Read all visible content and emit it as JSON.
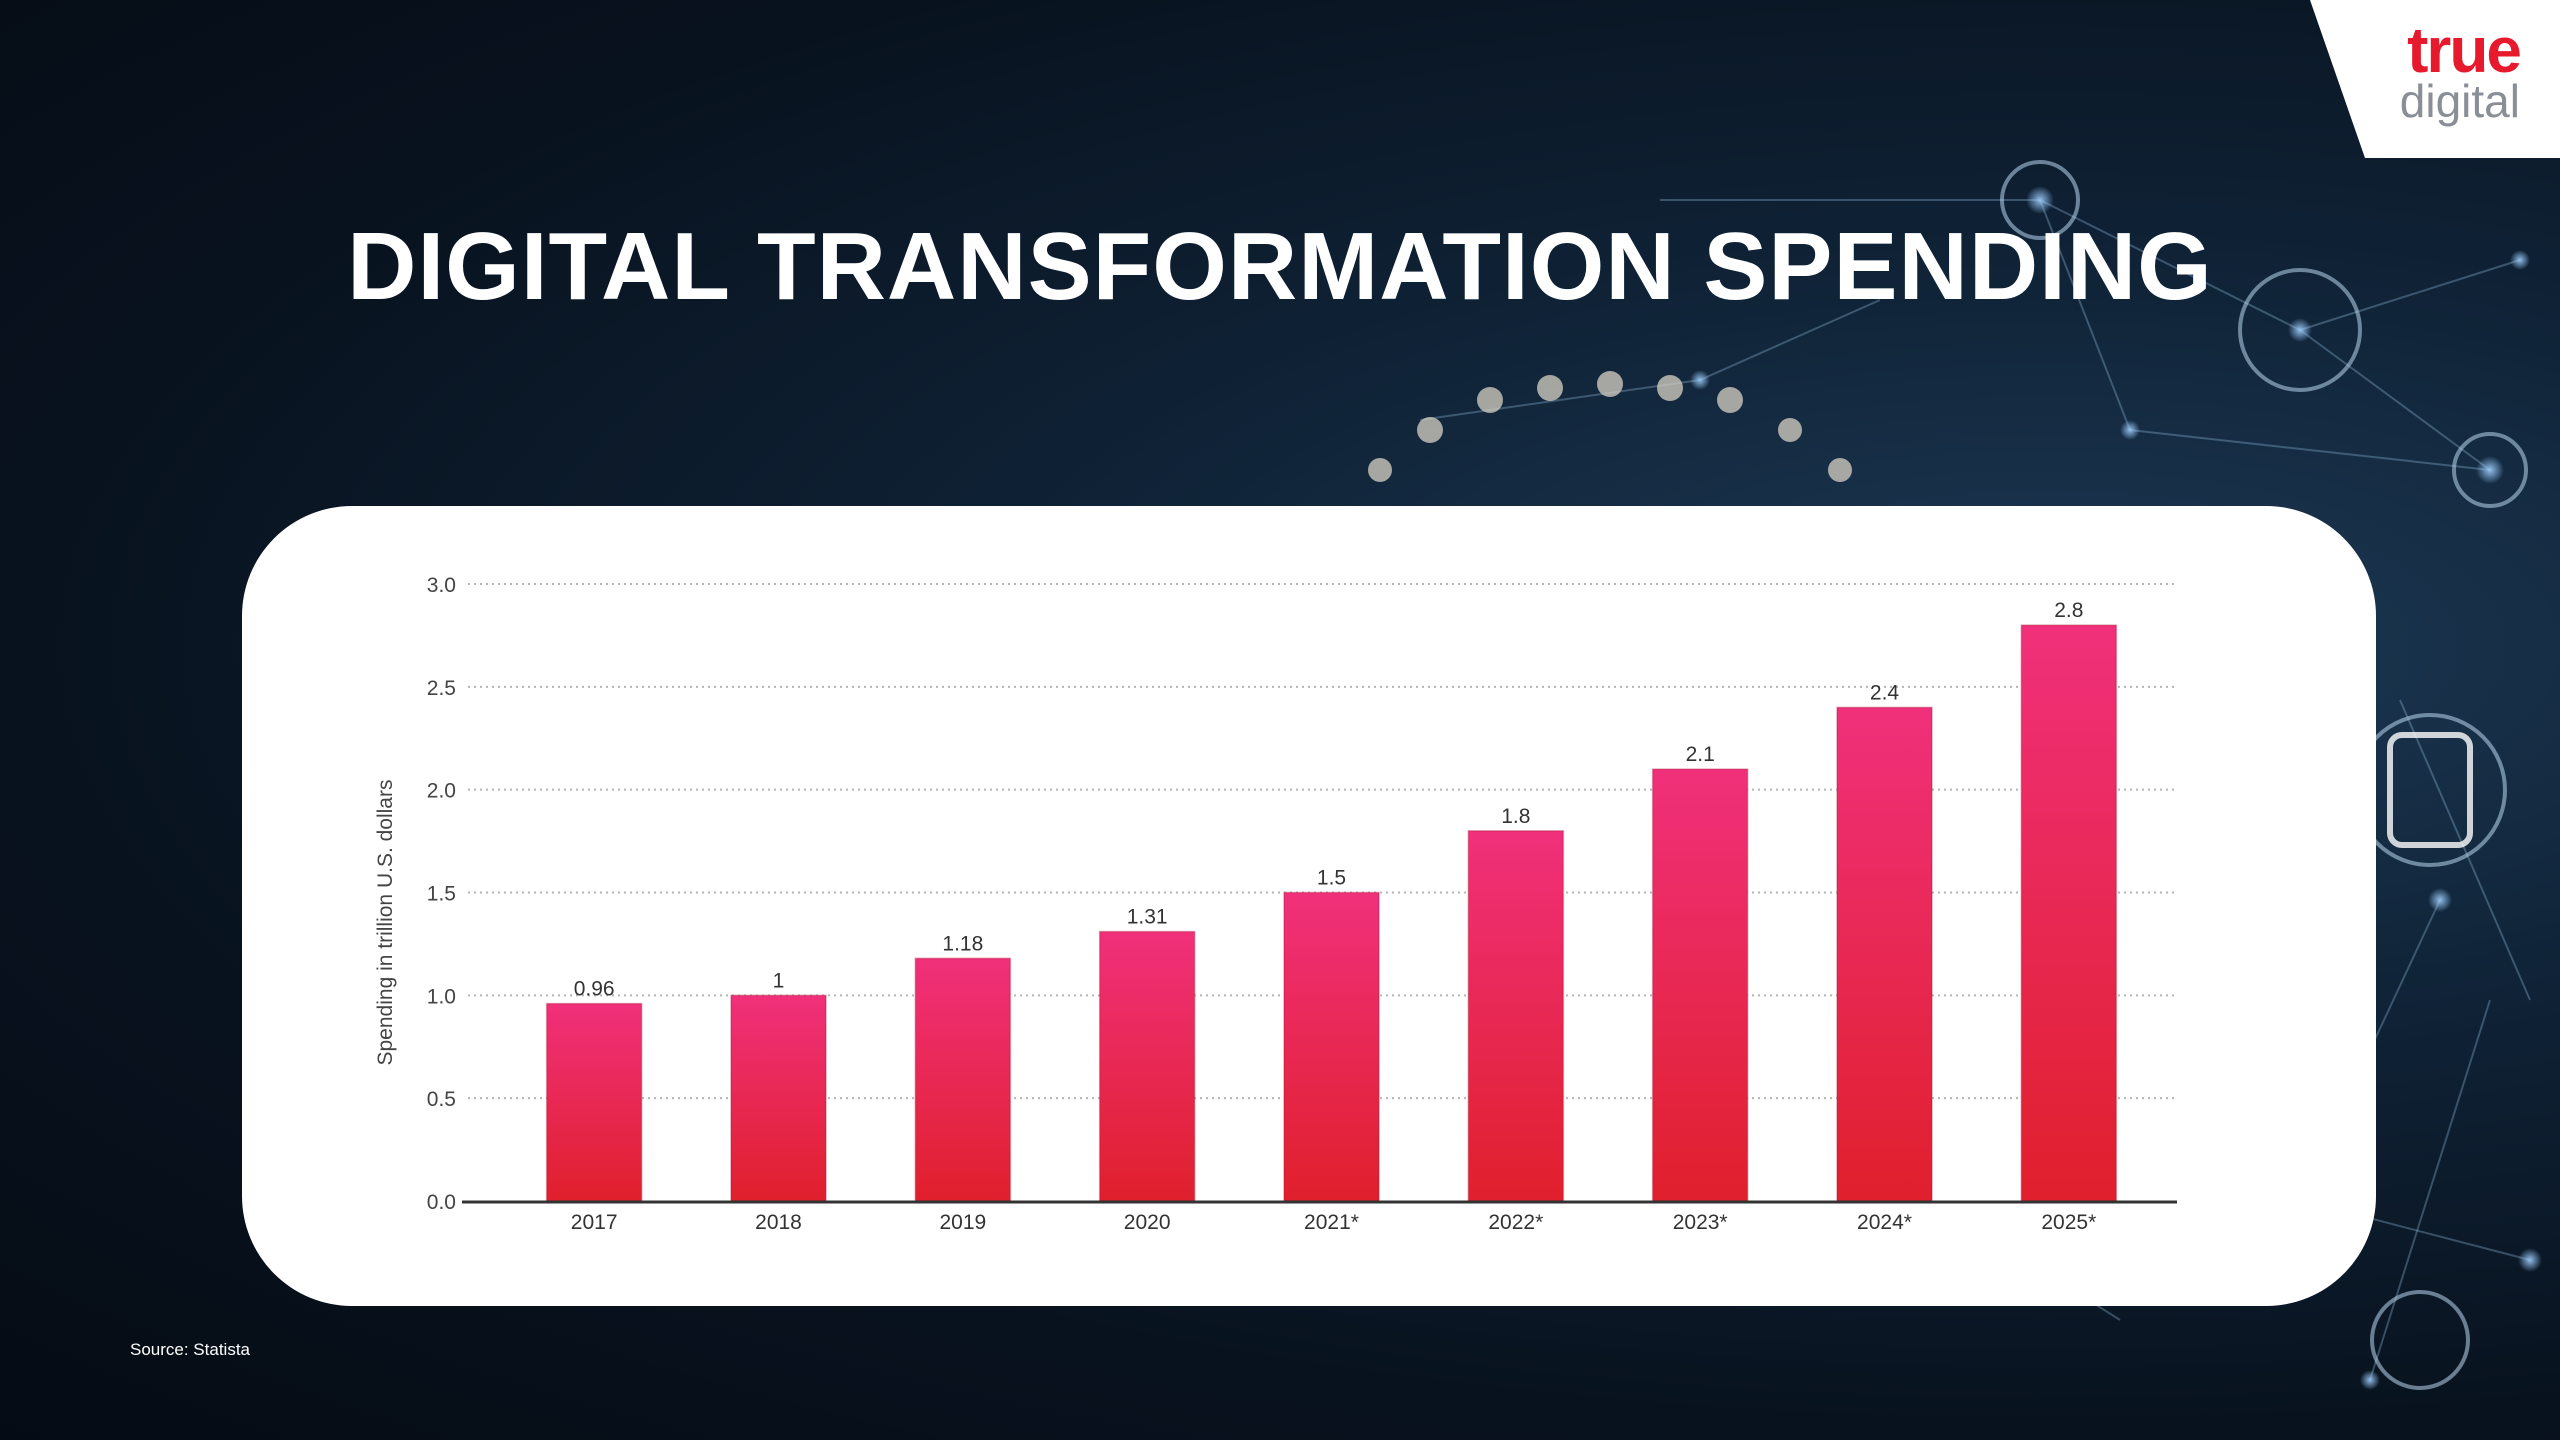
{
  "slide": {
    "title": "DIGITAL TRANSFORMATION SPENDING",
    "source": "Source: Statista"
  },
  "logo": {
    "line1": "true",
    "line2": "digital",
    "colors": {
      "red": "#e6192d",
      "gray": "#8a8f97"
    }
  },
  "chart_data": {
    "type": "bar",
    "categories": [
      "2017",
      "2018",
      "2019",
      "2020",
      "2021*",
      "2022*",
      "2023*",
      "2024*",
      "2025*"
    ],
    "values": [
      0.96,
      1,
      1.18,
      1.31,
      1.5,
      1.8,
      2.1,
      2.4,
      2.8
    ],
    "value_labels": [
      "0.96",
      "1",
      "1.18",
      "1.31",
      "1.5",
      "1.8",
      "2.1",
      "2.4",
      "2.8"
    ],
    "ylabel": "Spending in trillion U.S. dollars",
    "ylim": [
      0,
      3.0
    ],
    "yticks": [
      "0.0",
      "0.5",
      "1.0",
      "1.5",
      "2.0",
      "2.5",
      "3.0"
    ],
    "grid": true,
    "bar_color_top": "#f0307a",
    "bar_color_bottom": "#e0202c"
  }
}
